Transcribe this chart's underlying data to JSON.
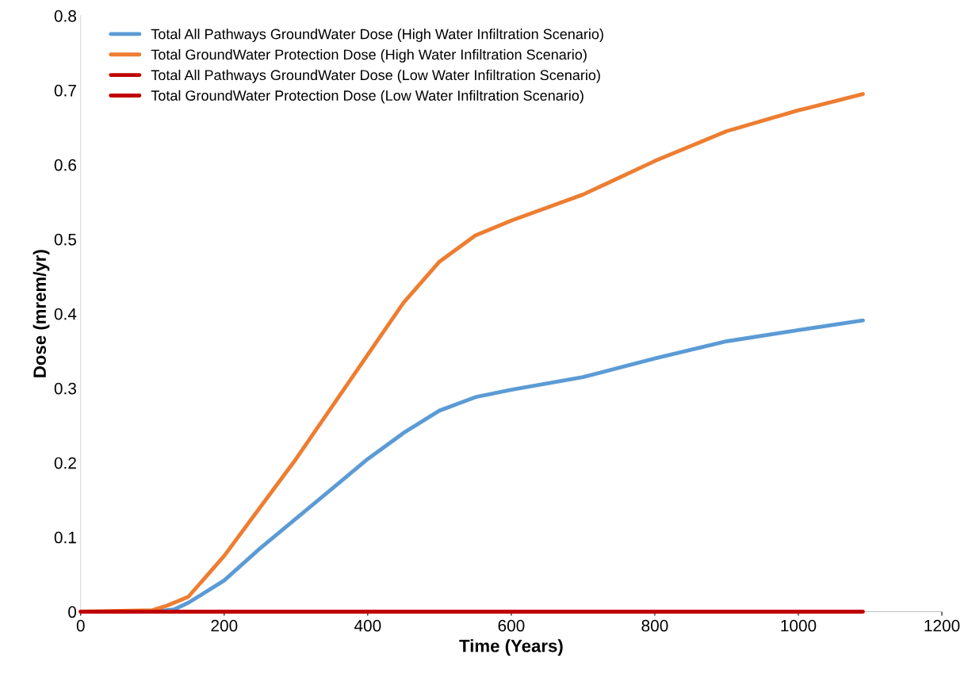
{
  "chart_data": {
    "type": "line",
    "xlabel": "Time (Years)",
    "ylabel": "Dose (mrem/yr)",
    "xlim": [
      0,
      1200
    ],
    "xticks": [
      0,
      200,
      400,
      600,
      800,
      1000,
      1200
    ],
    "ylim": [
      0,
      0.8
    ],
    "yticks": [
      0,
      0.1,
      0.2,
      0.3,
      0.4,
      0.5,
      0.6,
      0.7,
      0.8
    ],
    "grid": false,
    "legend": "top left",
    "marker": "none",
    "line_style": "solid",
    "series": [
      {
        "name": "Total All Pathways GroundWater Dose (High Water Infiltration Scenario)",
        "color": "#5b9bd5",
        "x": [
          0,
          100,
          130,
          150,
          200,
          250,
          300,
          350,
          400,
          450,
          500,
          550,
          600,
          700,
          800,
          900,
          1000,
          1090
        ],
        "values": [
          0,
          0,
          0.003,
          0.012,
          0.042,
          0.085,
          0.125,
          0.165,
          0.205,
          0.24,
          0.27,
          0.288,
          0.298,
          0.315,
          0.34,
          0.363,
          0.378,
          0.391
        ]
      },
      {
        "name": "Total GroundWater Protection Dose (High Water Infiltration Scenario)",
        "color": "#ed7d31",
        "x": [
          0,
          100,
          120,
          150,
          200,
          250,
          300,
          350,
          400,
          450,
          500,
          550,
          600,
          700,
          800,
          900,
          1000,
          1090
        ],
        "values": [
          0,
          0.002,
          0.008,
          0.02,
          0.075,
          0.14,
          0.205,
          0.275,
          0.345,
          0.415,
          0.47,
          0.505,
          0.525,
          0.56,
          0.605,
          0.645,
          0.673,
          0.695
        ]
      },
      {
        "name": "Total All Pathways GroundWater Dose (Low Water Infiltration Scenario)",
        "color": "#c00000",
        "values": [
          null,
          null
        ]
      },
      {
        "name": "Total GroundWater Protection Dose (Low Water Infiltration Scenario)",
        "color": "#c00000",
        "x": [
          0,
          1090
        ],
        "values": [
          0,
          0
        ]
      }
    ]
  }
}
